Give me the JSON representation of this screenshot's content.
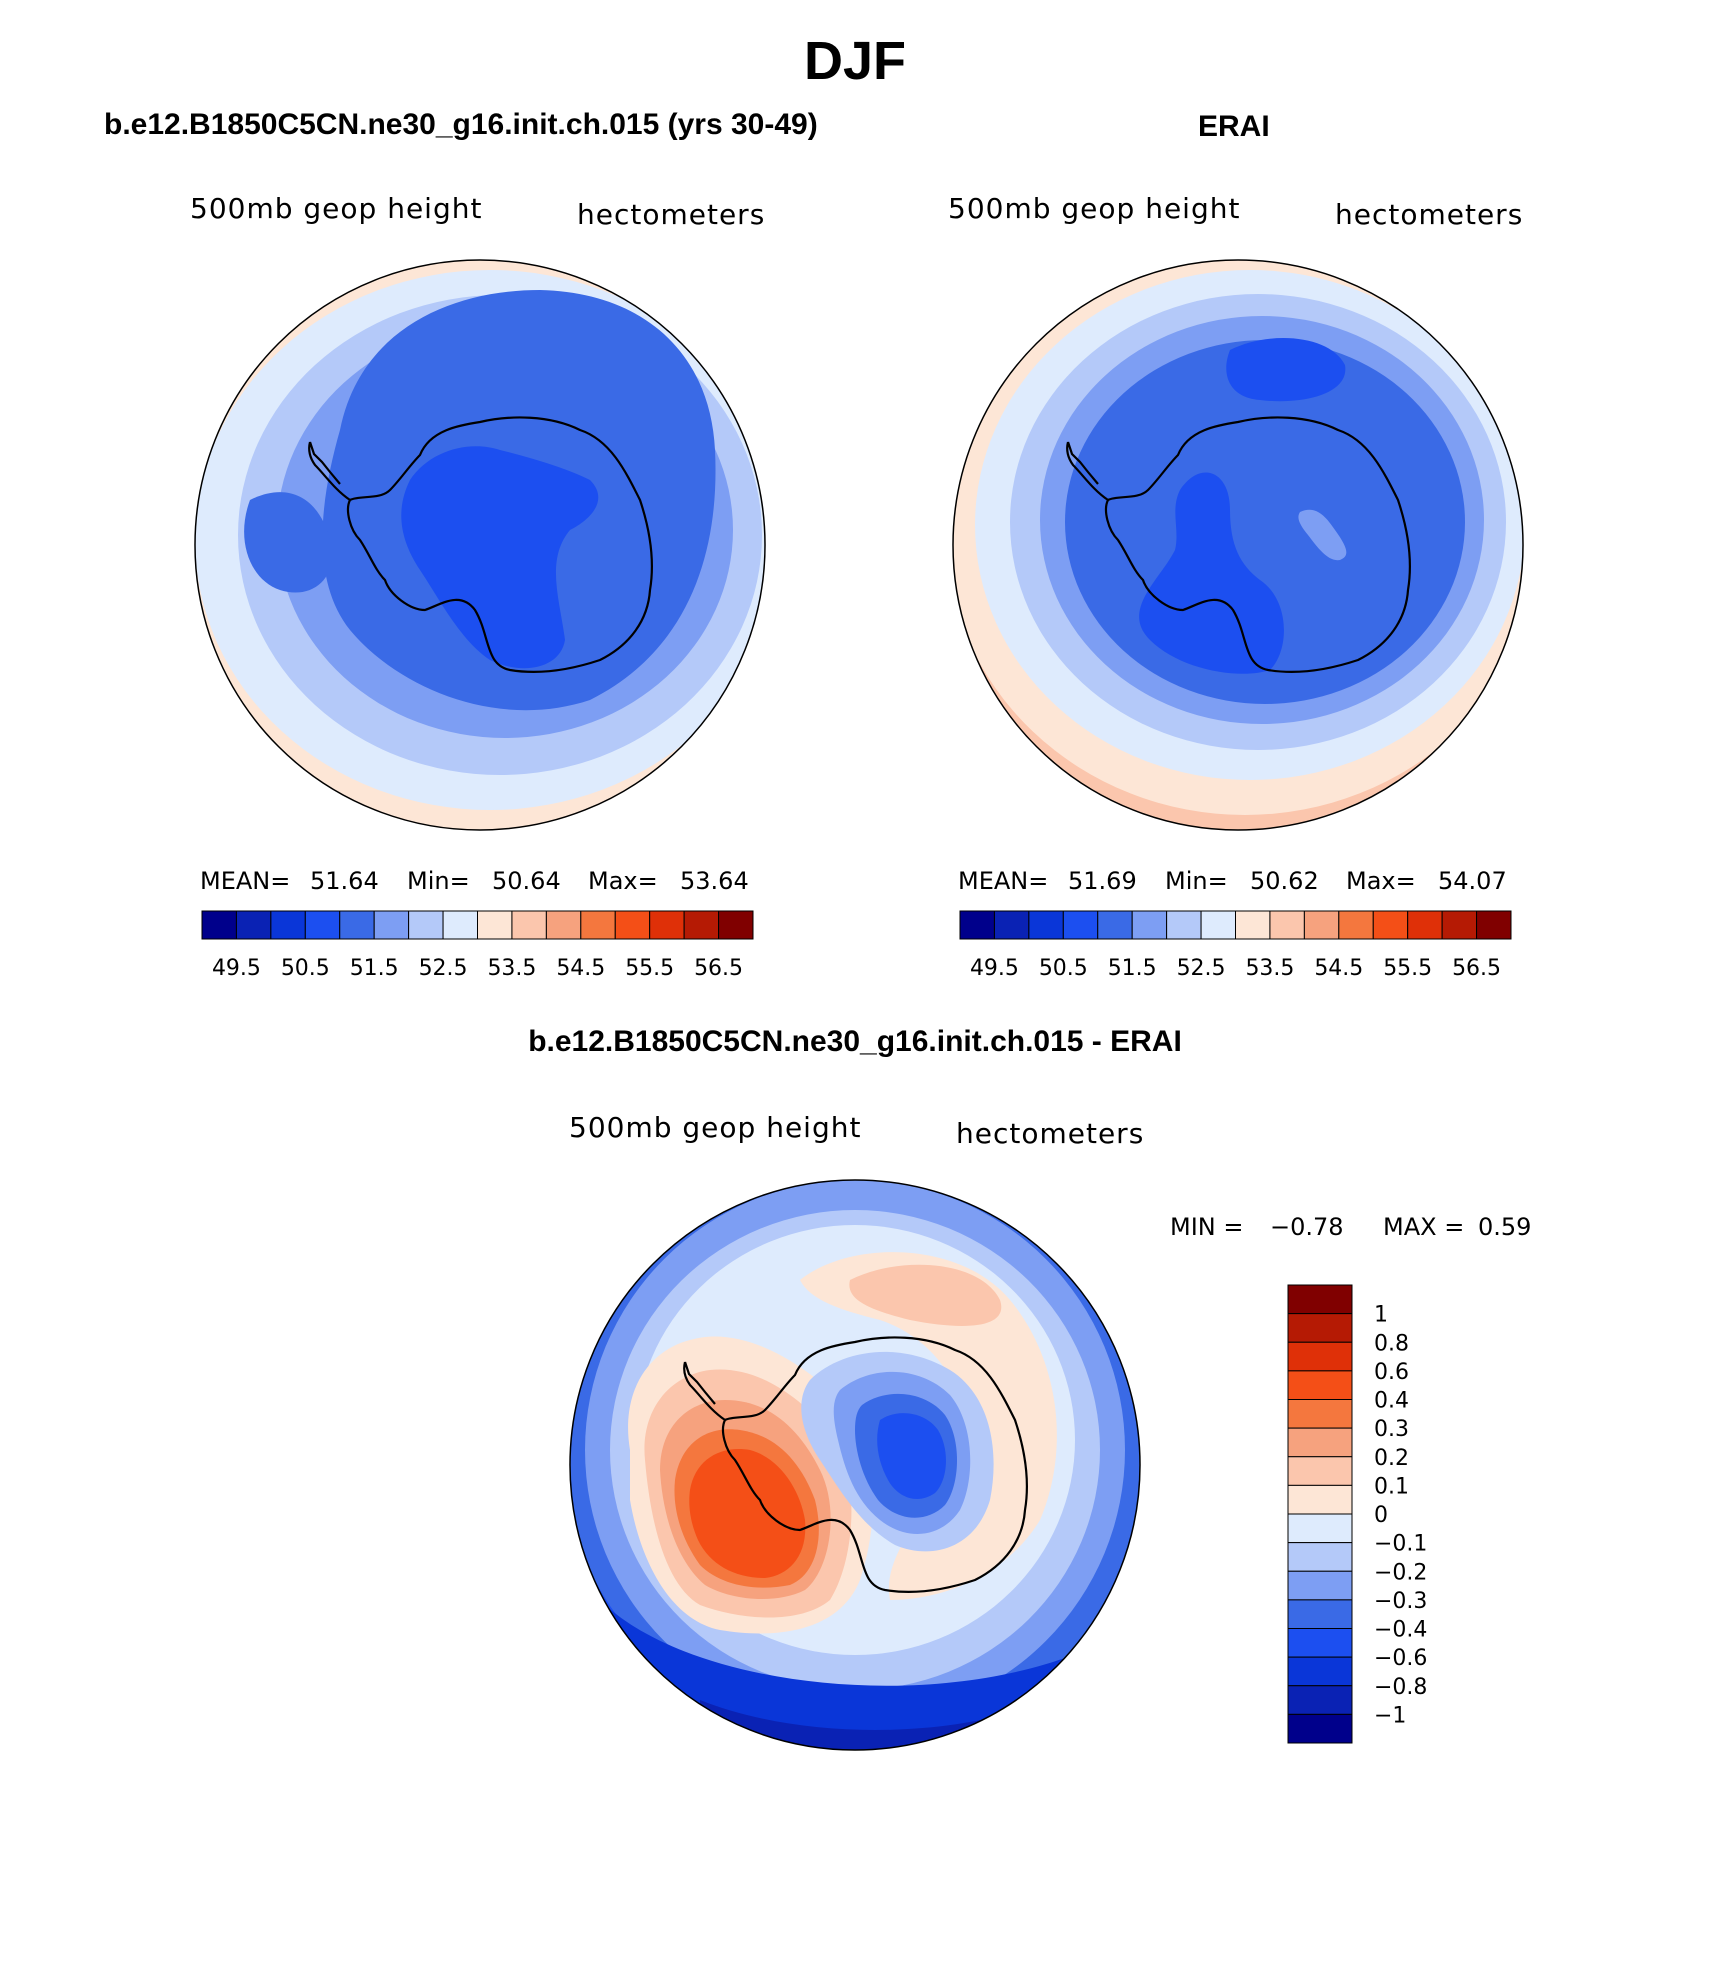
{
  "title": "DJF",
  "panels": {
    "model": {
      "title": "b.e12.B1850C5CN.ne30_g16.init.ch.015 (yrs 30-49)",
      "left_label": "500mb geop height",
      "right_label": "hectometers",
      "stats_mean_label": "MEAN=",
      "stats_mean": "51.64",
      "stats_min_label": "Min=",
      "stats_min": "50.64",
      "stats_max_label": "Max=",
      "stats_max": "53.64"
    },
    "obs": {
      "title": "ERAI",
      "left_label": "500mb geop height",
      "right_label": "hectometers",
      "stats_mean_label": "MEAN=",
      "stats_mean": "51.69",
      "stats_min_label": "Min=",
      "stats_min": "50.62",
      "stats_max_label": "Max=",
      "stats_max": "54.07"
    },
    "diff": {
      "title": "b.e12.B1850C5CN.ne30_g16.init.ch.015 - ERAI",
      "left_label": "500mb geop height",
      "right_label": "hectometers",
      "stats_min_label": "MIN =",
      "stats_min": "−0.78",
      "stats_max_label": "MAX =",
      "stats_max": "0.59"
    }
  },
  "chart_data": [
    {
      "type": "heatmap",
      "projection": "south polar stereographic",
      "title": "b.e12.B1850C5CN.ne30_g16.init.ch.015 (yrs 30-49)",
      "variable": "500mb geop height",
      "units": "hectometers",
      "mean": 51.64,
      "min": 50.64,
      "max": 53.64,
      "colorbar_levels": [
        49.5,
        50.5,
        51.5,
        52.5,
        53.5,
        54.5,
        55.5,
        56.5
      ],
      "colorbar_tick_labels": [
        "49.5",
        "50.5",
        "51.5",
        "52.5",
        "53.5",
        "54.5",
        "55.5",
        "56.5"
      ]
    },
    {
      "type": "heatmap",
      "projection": "south polar stereographic",
      "title": "ERAI",
      "variable": "500mb geop height",
      "units": "hectometers",
      "mean": 51.69,
      "min": 50.62,
      "max": 54.07,
      "colorbar_levels": [
        49.5,
        50.5,
        51.5,
        52.5,
        53.5,
        54.5,
        55.5,
        56.5
      ],
      "colorbar_tick_labels": [
        "49.5",
        "50.5",
        "51.5",
        "52.5",
        "53.5",
        "54.5",
        "55.5",
        "56.5"
      ]
    },
    {
      "type": "heatmap",
      "projection": "south polar stereographic",
      "title": "b.e12.B1850C5CN.ne30_g16.init.ch.015 - ERAI",
      "variable": "500mb geop height",
      "units": "hectometers",
      "min": -0.78,
      "max": 0.59,
      "colorbar_levels": [
        1,
        0.8,
        0.6,
        0.4,
        0.3,
        0.2,
        0.1,
        0,
        -0.1,
        -0.2,
        -0.3,
        -0.4,
        -0.6,
        -0.8,
        -1
      ],
      "colorbar_tick_labels": [
        "1",
        "0.8",
        "0.6",
        "0.4",
        "0.3",
        "0.2",
        "0.1",
        "0",
        "−0.1",
        "−0.2",
        "−0.3",
        "−0.4",
        "−0.6",
        "−0.8",
        "−1"
      ]
    }
  ],
  "colors": {
    "abs_scale": [
      "#00008b",
      "#0a22b4",
      "#0a36d8",
      "#1c4ff0",
      "#3a6ae6",
      "#7d9ef3",
      "#b4c9f9",
      "#deebfd",
      "#fde6d6",
      "#fbc6ad",
      "#f6a27e",
      "#f4773e",
      "#f44f17",
      "#df3008",
      "#b51a04",
      "#800000"
    ],
    "diff_scale": [
      "#800000",
      "#b51a04",
      "#df3008",
      "#f44f17",
      "#f4773e",
      "#f6a27e",
      "#fbc6ad",
      "#fde6d6",
      "#deebfd",
      "#b4c9f9",
      "#7d9ef3",
      "#3a6ae6",
      "#1c4ff0",
      "#0a36d8",
      "#0a22b4",
      "#00008b"
    ]
  }
}
